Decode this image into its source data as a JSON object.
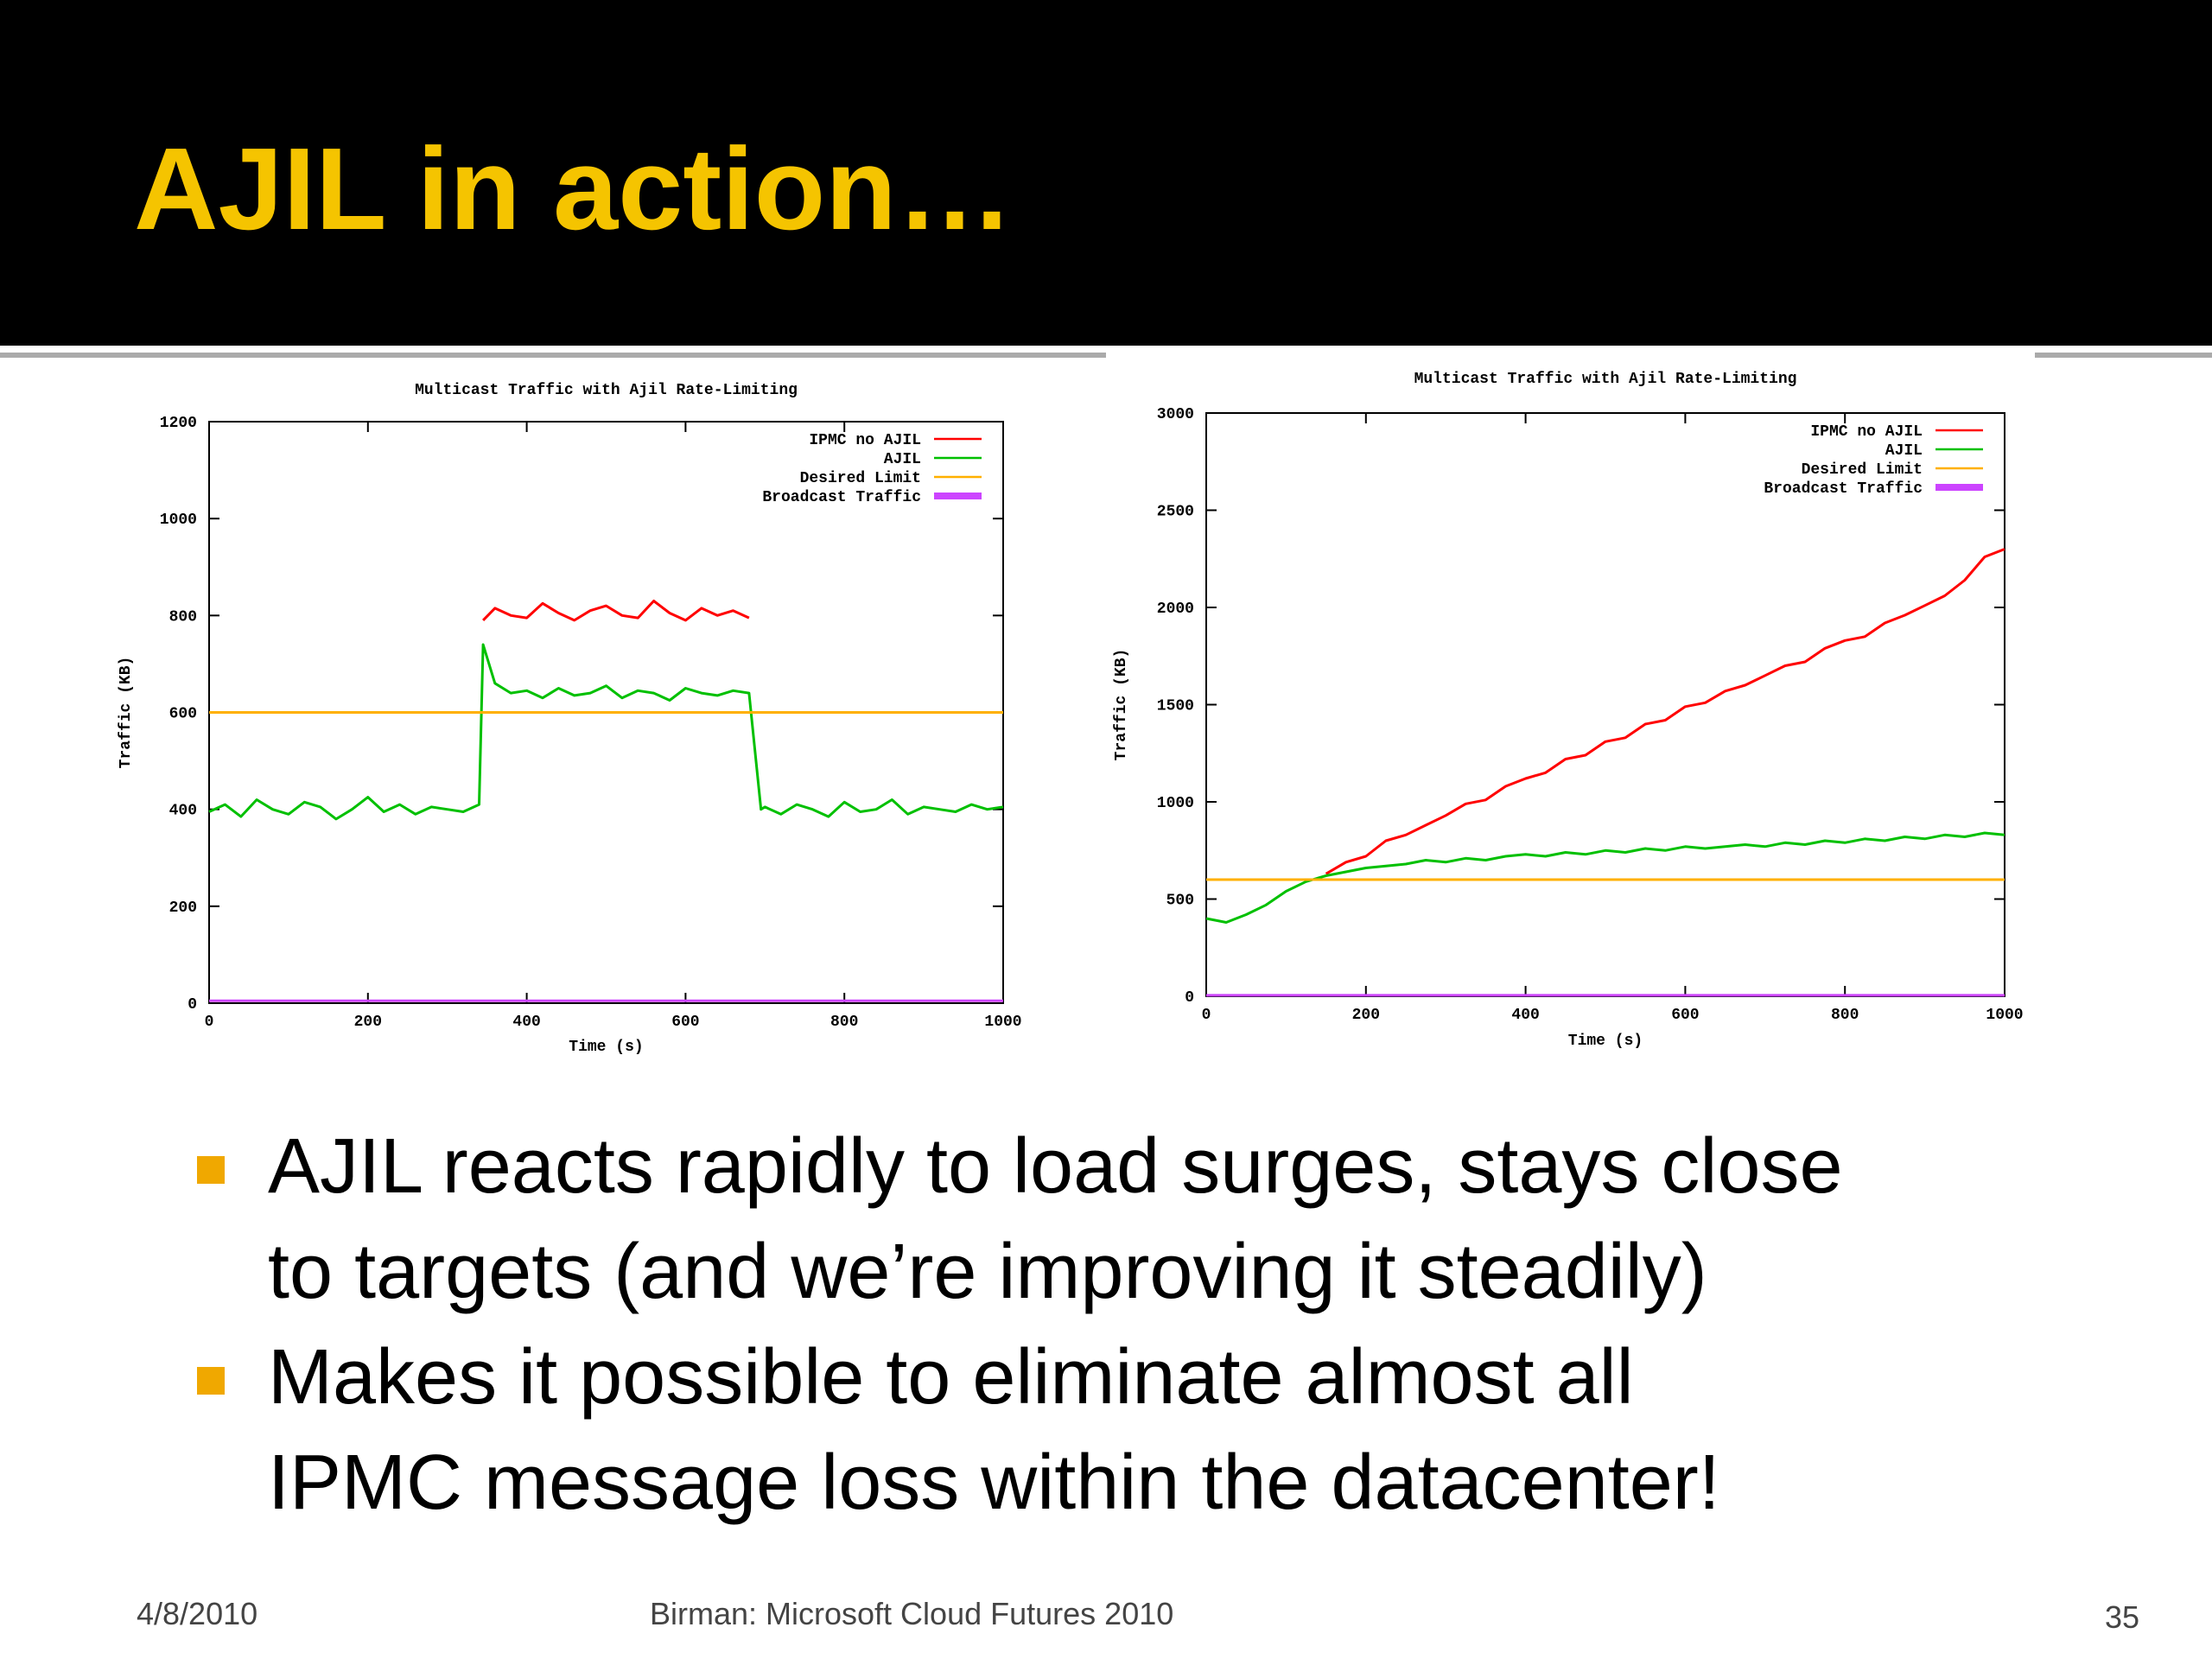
{
  "slide": {
    "title": "AJIL in action…"
  },
  "bullets": [
    "AJIL reacts rapidly to load surges, stays close",
    "to targets (and we’re improving it steadily)",
    "Makes it possible to eliminate almost all",
    "IPMC message loss within the datacenter!"
  ],
  "footer": {
    "date": "4/8/2010",
    "credit": "Birman: Microsoft Cloud Futures 2010",
    "page": "35"
  },
  "chart_data": [
    {
      "type": "line",
      "title": "Multicast Traffic with Ajil Rate-Limiting",
      "x_label": "Time (s)",
      "y_label": "Traffic (KB)",
      "xlim": [
        0,
        1000
      ],
      "xticks": [
        0,
        200,
        400,
        600,
        800,
        1000
      ],
      "ylim": [
        0,
        1200
      ],
      "yticks": [
        0,
        200,
        400,
        600,
        800,
        1000,
        1200
      ],
      "legend": "top-right",
      "x": [
        0,
        20,
        40,
        60,
        80,
        100,
        120,
        140,
        160,
        180,
        200,
        220,
        240,
        260,
        280,
        300,
        320,
        340,
        345,
        360,
        380,
        400,
        420,
        440,
        460,
        480,
        500,
        520,
        540,
        560,
        580,
        600,
        620,
        640,
        660,
        680,
        695,
        700,
        720,
        740,
        760,
        780,
        800,
        820,
        840,
        860,
        880,
        900,
        920,
        940,
        960,
        980,
        1000
      ],
      "series": [
        {
          "name": "IPMC no AJIL",
          "color": "#ff0000",
          "values": [
            null,
            null,
            null,
            null,
            null,
            null,
            null,
            null,
            null,
            null,
            null,
            null,
            null,
            null,
            null,
            null,
            null,
            null,
            790,
            815,
            800,
            795,
            825,
            805,
            790,
            810,
            820,
            800,
            795,
            830,
            805,
            790,
            815,
            800,
            810,
            795,
            null,
            null,
            null,
            null,
            null,
            null,
            null,
            null,
            null,
            null,
            null,
            null,
            null,
            null,
            null,
            null,
            null
          ]
        },
        {
          "name": "AJIL",
          "color": "#00c000",
          "values": [
            395,
            410,
            385,
            420,
            400,
            390,
            415,
            405,
            380,
            400,
            425,
            395,
            410,
            390,
            405,
            400,
            395,
            410,
            740,
            660,
            640,
            645,
            630,
            650,
            635,
            640,
            655,
            630,
            645,
            640,
            625,
            650,
            640,
            635,
            645,
            640,
            400,
            405,
            390,
            410,
            400,
            385,
            415,
            395,
            400,
            420,
            390,
            405,
            400,
            395,
            410,
            400,
            405
          ]
        },
        {
          "name": "Desired Limit",
          "color": "#ffb000",
          "values": [
            600,
            600,
            600,
            600,
            600,
            600,
            600,
            600,
            600,
            600,
            600,
            600,
            600,
            600,
            600,
            600,
            600,
            600,
            600,
            600,
            600,
            600,
            600,
            600,
            600,
            600,
            600,
            600,
            600,
            600,
            600,
            600,
            600,
            600,
            600,
            600,
            600,
            600,
            600,
            600,
            600,
            600,
            600,
            600,
            600,
            600,
            600,
            600,
            600,
            600,
            600,
            600,
            600
          ]
        },
        {
          "name": "Broadcast Traffic",
          "color": "#cc44ff",
          "values": [
            5,
            5,
            5,
            5,
            5,
            5,
            5,
            5,
            5,
            5,
            5,
            5,
            5,
            5,
            5,
            5,
            5,
            5,
            5,
            5,
            5,
            5,
            5,
            5,
            5,
            5,
            5,
            5,
            5,
            5,
            5,
            5,
            5,
            5,
            5,
            5,
            5,
            5,
            5,
            5,
            5,
            5,
            5,
            5,
            5,
            5,
            5,
            5,
            5,
            5,
            5,
            5,
            5
          ]
        }
      ]
    },
    {
      "type": "line",
      "title": "Multicast Traffic with Ajil Rate-Limiting",
      "x_label": "Time (s)",
      "y_label": "Traffic (KB)",
      "xlim": [
        0,
        1000
      ],
      "xticks": [
        0,
        200,
        400,
        600,
        800,
        1000
      ],
      "ylim": [
        0,
        3000
      ],
      "yticks": [
        0,
        500,
        1000,
        1500,
        2000,
        2500,
        3000
      ],
      "legend": "top-right",
      "x": [
        0,
        25,
        50,
        75,
        100,
        125,
        150,
        175,
        200,
        225,
        250,
        275,
        300,
        325,
        350,
        375,
        400,
        425,
        450,
        475,
        500,
        525,
        550,
        575,
        600,
        625,
        650,
        675,
        700,
        725,
        750,
        775,
        800,
        825,
        850,
        875,
        900,
        925,
        950,
        975,
        1000
      ],
      "series": [
        {
          "name": "IPMC no AJIL",
          "color": "#ff0000",
          "values": [
            null,
            null,
            null,
            null,
            null,
            null,
            630,
            690,
            720,
            800,
            830,
            880,
            930,
            990,
            1010,
            1080,
            1120,
            1150,
            1220,
            1240,
            1310,
            1330,
            1400,
            1420,
            1490,
            1510,
            1570,
            1600,
            1650,
            1700,
            1720,
            1790,
            1830,
            1850,
            1920,
            1960,
            2010,
            2060,
            2140,
            2260,
            2300
          ]
        },
        {
          "name": "AJIL",
          "color": "#00c000",
          "values": [
            400,
            380,
            420,
            470,
            540,
            590,
            620,
            640,
            660,
            670,
            680,
            700,
            690,
            710,
            700,
            720,
            730,
            720,
            740,
            730,
            750,
            740,
            760,
            750,
            770,
            760,
            770,
            780,
            770,
            790,
            780,
            800,
            790,
            810,
            800,
            820,
            810,
            830,
            820,
            840,
            830
          ]
        },
        {
          "name": "Desired Limit",
          "color": "#ffb000",
          "values": [
            600,
            600,
            600,
            600,
            600,
            600,
            600,
            600,
            600,
            600,
            600,
            600,
            600,
            600,
            600,
            600,
            600,
            600,
            600,
            600,
            600,
            600,
            600,
            600,
            600,
            600,
            600,
            600,
            600,
            600,
            600,
            600,
            600,
            600,
            600,
            600,
            600,
            600,
            600,
            600,
            600
          ]
        },
        {
          "name": "Broadcast Traffic",
          "color": "#cc44ff",
          "values": [
            5,
            5,
            5,
            5,
            5,
            5,
            5,
            5,
            5,
            5,
            5,
            5,
            5,
            5,
            5,
            5,
            5,
            5,
            5,
            5,
            5,
            5,
            5,
            5,
            5,
            5,
            5,
            5,
            5,
            5,
            5,
            5,
            5,
            5,
            5,
            5,
            5,
            5,
            5,
            5,
            5
          ]
        }
      ]
    }
  ]
}
